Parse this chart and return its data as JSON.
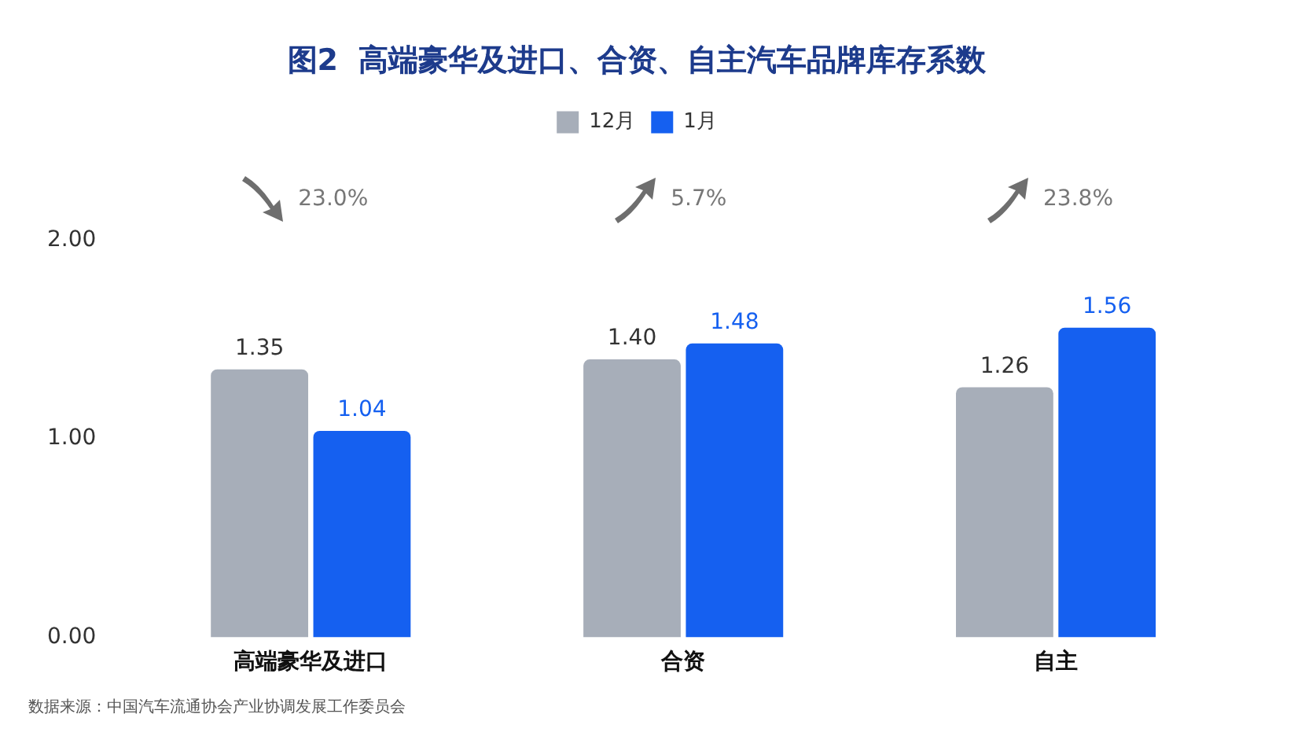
{
  "chart_data": {
    "type": "bar",
    "title": "图2  高端豪华及进口、合资、自主汽车品牌库存系数",
    "categories": [
      "高端豪华及进口",
      "合资",
      "自主"
    ],
    "series": [
      {
        "name": "12月",
        "color": "#a7aeb9",
        "values": [
          1.35,
          1.4,
          1.26
        ],
        "value_labels": [
          "1.35",
          "1.40",
          "1.26"
        ]
      },
      {
        "name": "1月",
        "color": "#1560f0",
        "values": [
          1.04,
          1.48,
          1.56
        ],
        "value_labels": [
          "1.04",
          "1.48",
          "1.56"
        ]
      }
    ],
    "ylim": [
      0,
      2
    ],
    "yticks": [
      {
        "value": 0,
        "label": "0.00"
      },
      {
        "value": 1,
        "label": "1.00"
      },
      {
        "value": 2,
        "label": "2.00"
      }
    ],
    "grid": false,
    "legend": "top",
    "annotations": [
      "23.0%",
      "5.7%",
      "23.8%",
      "数据来源：中国汽车流通协会产业协调发展工作委员会"
    ]
  }
}
